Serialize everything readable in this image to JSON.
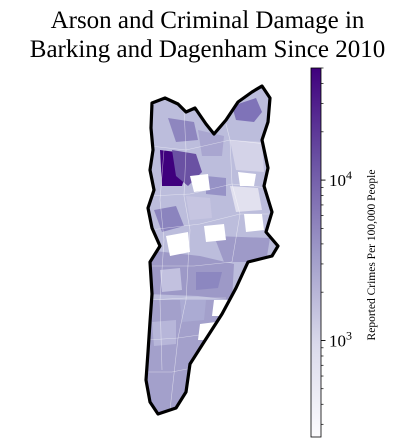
{
  "title": {
    "line1": "Arson and Criminal Damage in",
    "line2": "Barking and Dagenham Since 2010"
  },
  "colorbar": {
    "label": "Reported Crimes Per 100,000 People",
    "scale": "log",
    "colormap": "Purples",
    "range": [
      250,
      50000
    ],
    "ticks": [
      {
        "value": 1000,
        "base": "10",
        "exp": "3"
      },
      {
        "value": 10000,
        "base": "10",
        "exp": "4"
      }
    ]
  },
  "colors": {
    "outline": "#000000",
    "dark": "#3f007d",
    "light": "#fcfbfd"
  }
}
